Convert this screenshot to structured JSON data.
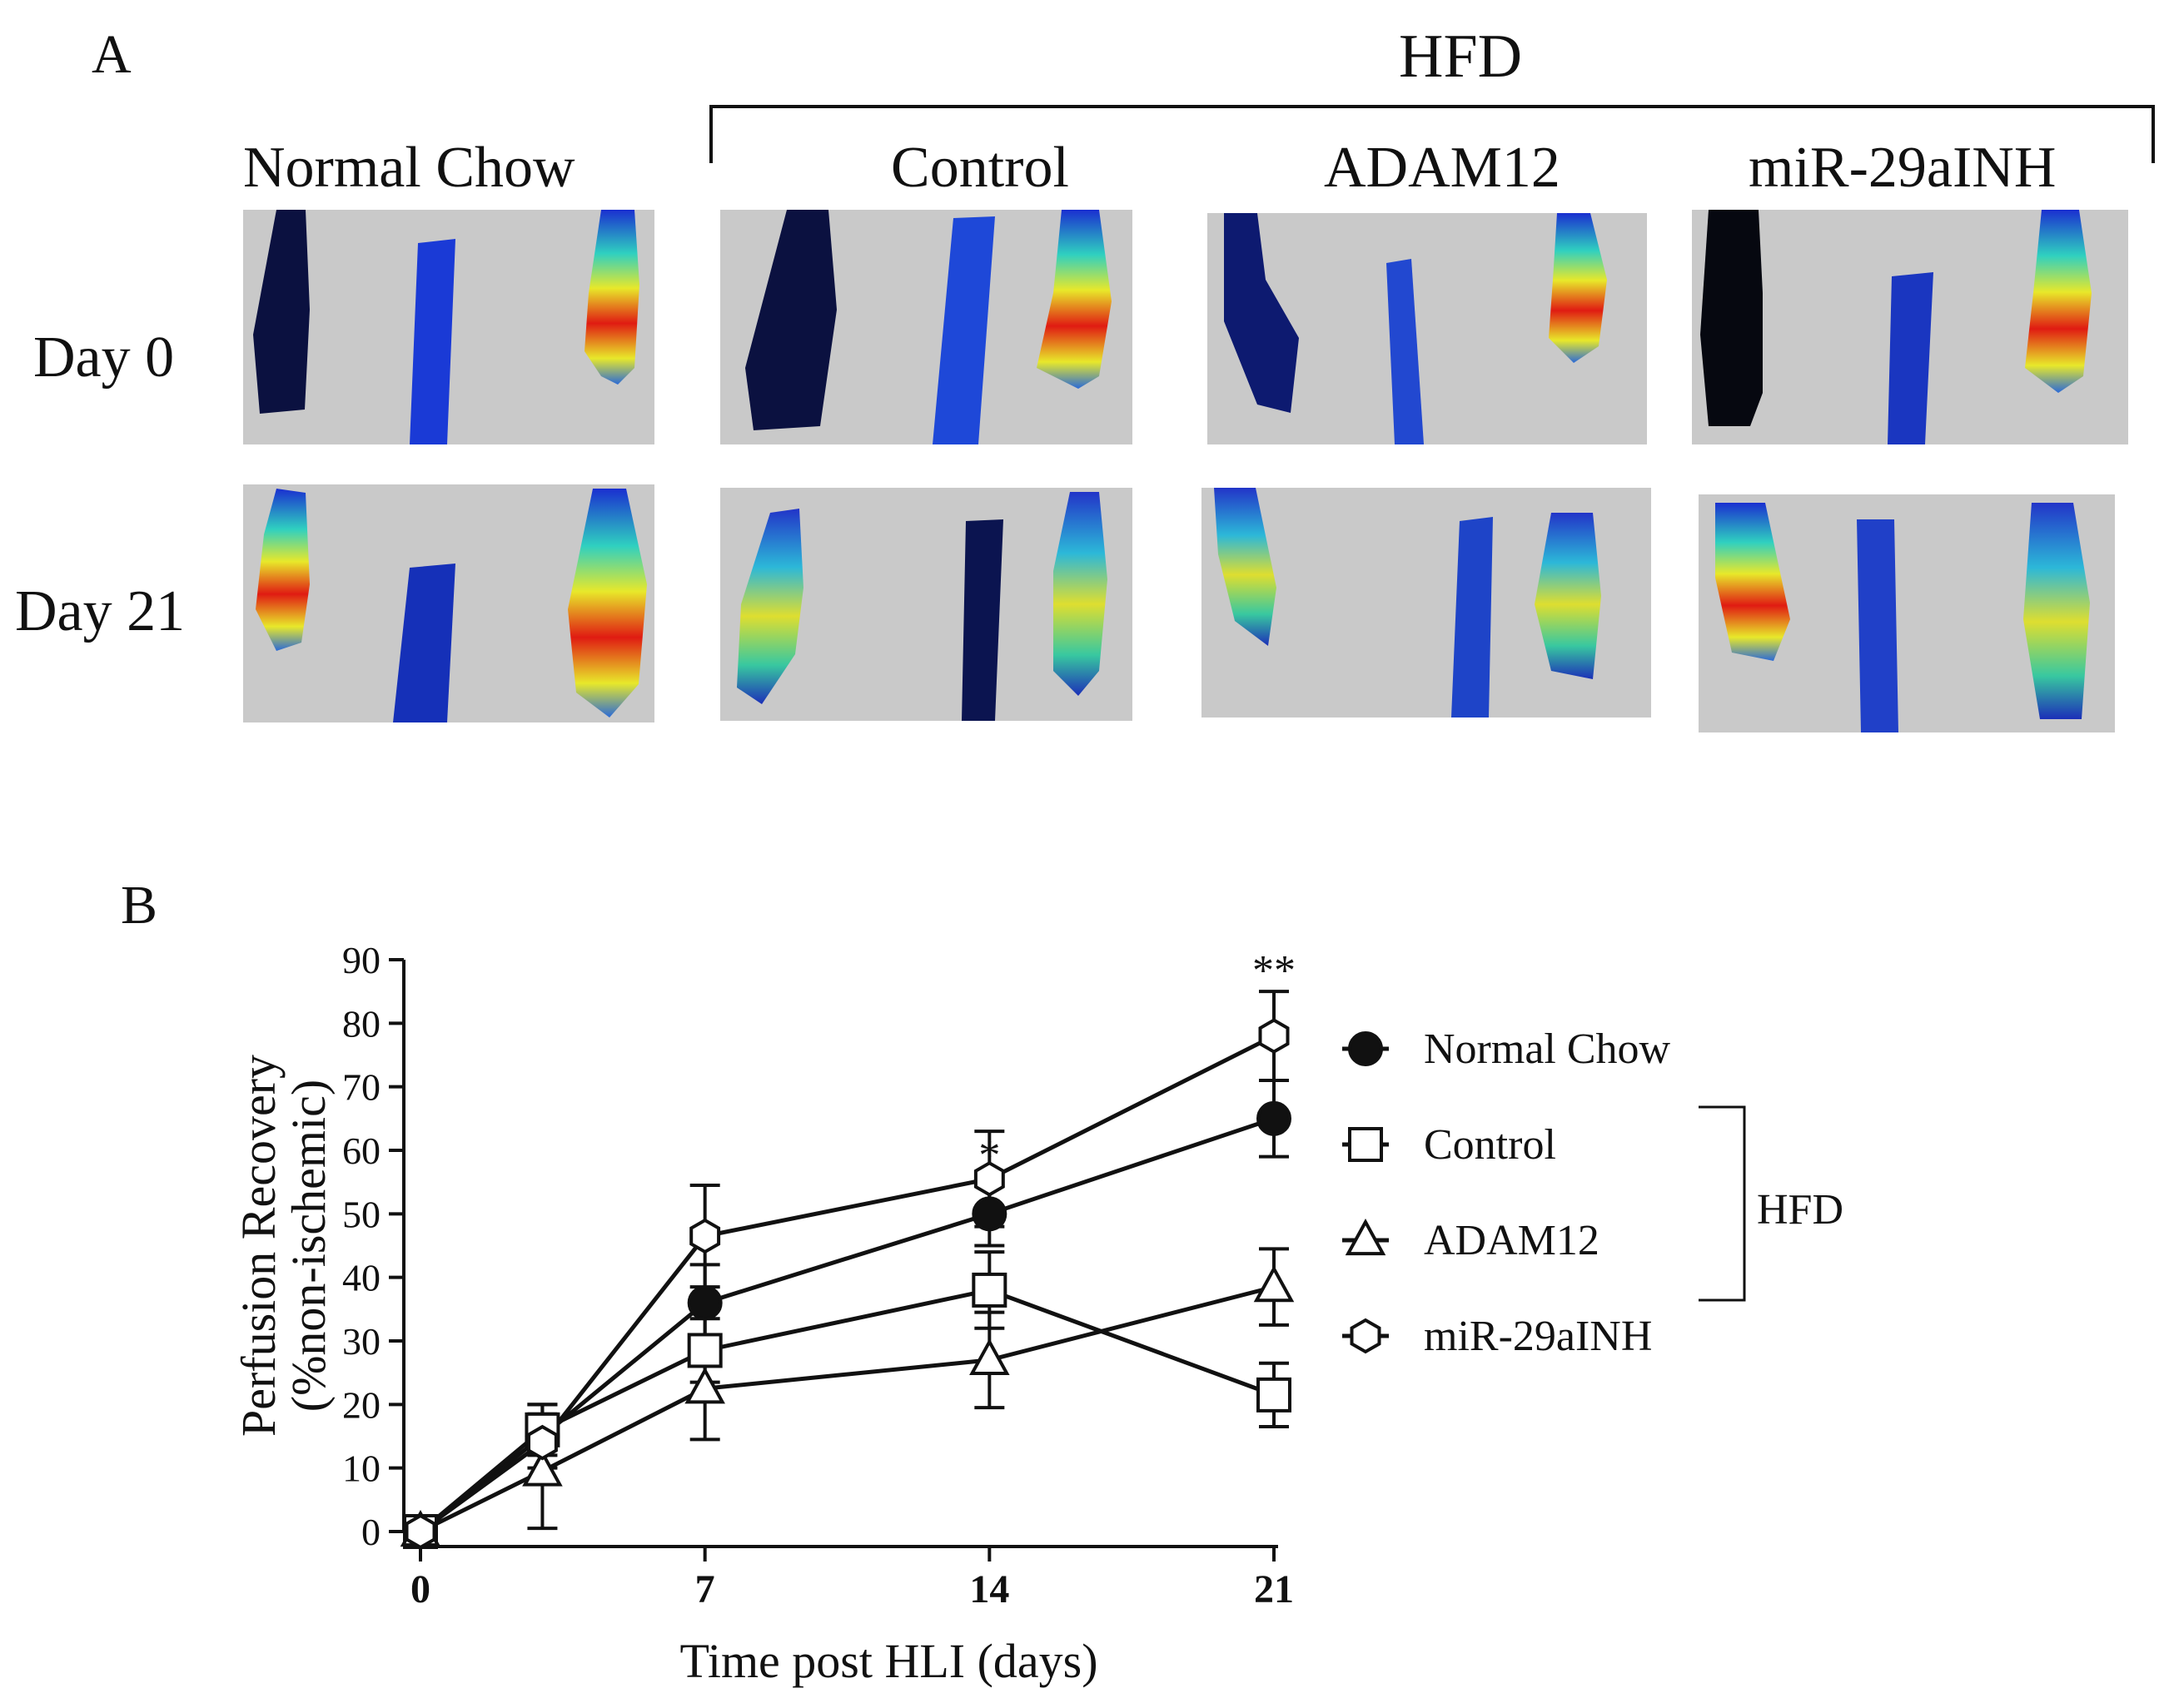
{
  "panel_a": {
    "letter": "A",
    "hfd_label": "HFD",
    "columns": [
      "Normal Chow",
      "Control",
      "ADAM12",
      "miR-29aINH"
    ],
    "rows": [
      "Day 0",
      "Day 21"
    ]
  },
  "panel_b": {
    "letter": "B"
  },
  "chart_data": {
    "type": "line",
    "title": "",
    "xlabel": "Time post HLI (days)",
    "ylabel_line1": "Perfusion Recovery",
    "ylabel_line2": "(%non-ischemic)",
    "xlim": [
      0,
      21
    ],
    "ylim": [
      0,
      90
    ],
    "xticks": [
      0,
      7,
      14,
      21
    ],
    "yticks": [
      0,
      10,
      20,
      30,
      40,
      50,
      60,
      70,
      80,
      90
    ],
    "x": [
      0,
      3,
      7,
      14,
      21
    ],
    "series": [
      {
        "name": "Normal Chow",
        "marker": "filled-circle",
        "values": [
          0,
          15,
          36,
          50,
          65
        ],
        "errors": [
          0,
          5,
          6,
          5,
          6
        ]
      },
      {
        "name": "Control",
        "marker": "open-square",
        "values": [
          0,
          16,
          28.5,
          38,
          21.5
        ],
        "errors": [
          0,
          4,
          5,
          6,
          5
        ]
      },
      {
        "name": "ADAM12",
        "marker": "open-triangle",
        "values": [
          0,
          9.5,
          22.5,
          27,
          38.5
        ],
        "errors": [
          0,
          9,
          8,
          7.5,
          6
        ]
      },
      {
        "name": "miR-29aINH",
        "marker": "open-hexagon",
        "values": [
          0,
          14,
          46.5,
          55.5,
          78
        ],
        "errors": [
          0,
          6,
          8,
          7.5,
          7
        ]
      }
    ],
    "annotations": [
      {
        "text": "*",
        "x": 14
      },
      {
        "text": "**",
        "x": 21
      }
    ],
    "legend_bracket_label": "HFD"
  }
}
